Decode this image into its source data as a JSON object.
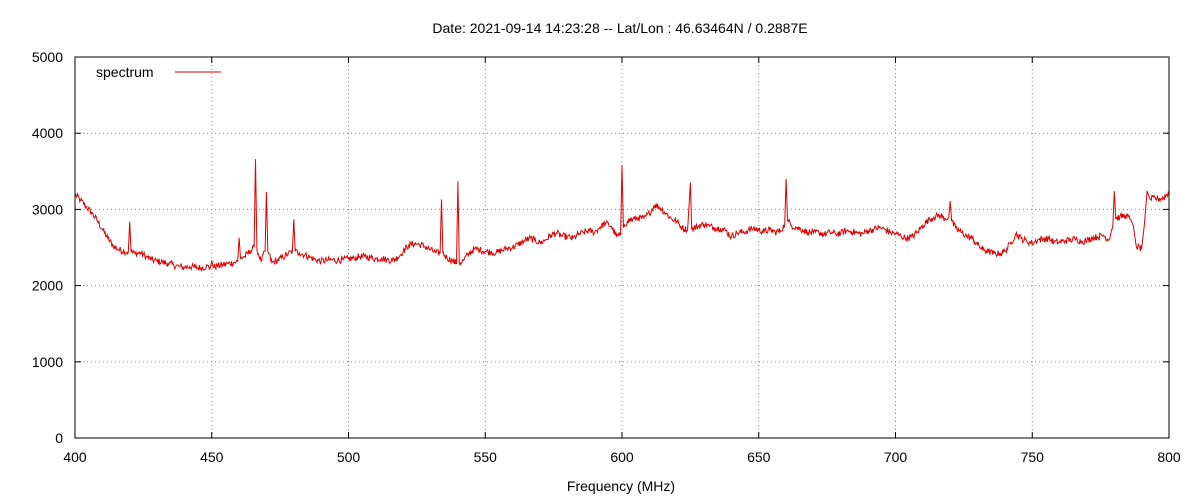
{
  "chart_data": {
    "type": "line",
    "title": "Date: 2021-09-14 14:23:28  --  Lat/Lon : 46.63464N / 0.2887E",
    "xlabel": "Frequency (MHz)",
    "ylabel": "",
    "xlim": [
      400,
      800
    ],
    "ylim": [
      0,
      5000
    ],
    "xticks": [
      "400",
      "450",
      "500",
      "550",
      "600",
      "650",
      "700",
      "750",
      "800"
    ],
    "yticks": [
      "0",
      "1000",
      "2000",
      "3000",
      "4000",
      "5000"
    ],
    "grid": true,
    "legend": {
      "position": "top-left",
      "entries": [
        "spectrum"
      ]
    },
    "series_color": "#e00000",
    "series": [
      {
        "name": "spectrum",
        "points": [
          [
            400,
            3200
          ],
          [
            402,
            3120
          ],
          [
            404,
            3040
          ],
          [
            406,
            2960
          ],
          [
            408,
            2860
          ],
          [
            410,
            2740
          ],
          [
            412,
            2620
          ],
          [
            414,
            2520
          ],
          [
            416,
            2470
          ],
          [
            418,
            2450
          ],
          [
            419.5,
            2440
          ],
          [
            420,
            2840
          ],
          [
            420.5,
            2440
          ],
          [
            422,
            2420
          ],
          [
            424,
            2430
          ],
          [
            426,
            2380
          ],
          [
            428,
            2340
          ],
          [
            430,
            2320
          ],
          [
            432,
            2310
          ],
          [
            434,
            2290
          ],
          [
            436,
            2270
          ],
          [
            438,
            2250
          ],
          [
            440,
            2240
          ],
          [
            442,
            2250
          ],
          [
            444,
            2240
          ],
          [
            446,
            2230
          ],
          [
            448,
            2250
          ],
          [
            449.5,
            2240
          ],
          [
            450,
            2330
          ],
          [
            450.5,
            2240
          ],
          [
            452,
            2260
          ],
          [
            454,
            2270
          ],
          [
            456,
            2290
          ],
          [
            458,
            2300
          ],
          [
            459.5,
            2320
          ],
          [
            460,
            2630
          ],
          [
            460.5,
            2360
          ],
          [
            462,
            2380
          ],
          [
            464,
            2450
          ],
          [
            465.5,
            2500
          ],
          [
            466,
            3660
          ],
          [
            466.5,
            2480
          ],
          [
            468,
            2320
          ],
          [
            469.5,
            2450
          ],
          [
            470,
            3230
          ],
          [
            470.5,
            2450
          ],
          [
            472,
            2300
          ],
          [
            474,
            2330
          ],
          [
            476,
            2370
          ],
          [
            478,
            2420
          ],
          [
            479.5,
            2450
          ],
          [
            480,
            2870
          ],
          [
            480.5,
            2450
          ],
          [
            482,
            2430
          ],
          [
            484,
            2400
          ],
          [
            486,
            2370
          ],
          [
            488,
            2340
          ],
          [
            490,
            2320
          ],
          [
            492,
            2330
          ],
          [
            494,
            2340
          ],
          [
            496,
            2330
          ],
          [
            498,
            2340
          ],
          [
            500,
            2350
          ],
          [
            502,
            2360
          ],
          [
            504,
            2380
          ],
          [
            506,
            2380
          ],
          [
            508,
            2370
          ],
          [
            510,
            2350
          ],
          [
            512,
            2360
          ],
          [
            514,
            2340
          ],
          [
            516,
            2330
          ],
          [
            518,
            2370
          ],
          [
            520,
            2450
          ],
          [
            522,
            2530
          ],
          [
            524,
            2550
          ],
          [
            526,
            2540
          ],
          [
            528,
            2510
          ],
          [
            530,
            2470
          ],
          [
            532,
            2430
          ],
          [
            533.5,
            2430
          ],
          [
            534,
            3130
          ],
          [
            534.5,
            2430
          ],
          [
            536,
            2360
          ],
          [
            538,
            2330
          ],
          [
            539.5,
            2290
          ],
          [
            540,
            3370
          ],
          [
            540.5,
            2290
          ],
          [
            542,
            2330
          ],
          [
            544,
            2420
          ],
          [
            546,
            2480
          ],
          [
            548,
            2470
          ],
          [
            550,
            2450
          ],
          [
            552,
            2440
          ],
          [
            554,
            2430
          ],
          [
            556,
            2460
          ],
          [
            558,
            2490
          ],
          [
            560,
            2500
          ],
          [
            562,
            2540
          ],
          [
            564,
            2580
          ],
          [
            566,
            2620
          ],
          [
            568,
            2600
          ],
          [
            570,
            2560
          ],
          [
            572,
            2600
          ],
          [
            574,
            2660
          ],
          [
            576,
            2690
          ],
          [
            578,
            2650
          ],
          [
            580,
            2640
          ],
          [
            582,
            2620
          ],
          [
            584,
            2670
          ],
          [
            586,
            2700
          ],
          [
            588,
            2720
          ],
          [
            590,
            2700
          ],
          [
            592,
            2770
          ],
          [
            594,
            2820
          ],
          [
            596,
            2780
          ],
          [
            598,
            2650
          ],
          [
            599.5,
            2660
          ],
          [
            600,
            3580
          ],
          [
            600.5,
            2760
          ],
          [
            602,
            2850
          ],
          [
            604,
            2870
          ],
          [
            606,
            2890
          ],
          [
            608,
            2880
          ],
          [
            610,
            2950
          ],
          [
            612,
            3060
          ],
          [
            614,
            3020
          ],
          [
            616,
            2950
          ],
          [
            618,
            2880
          ],
          [
            620,
            2840
          ],
          [
            622,
            2760
          ],
          [
            624,
            2730
          ],
          [
            625,
            3350
          ],
          [
            625.5,
            2740
          ],
          [
            628,
            2780
          ],
          [
            630,
            2810
          ],
          [
            632,
            2780
          ],
          [
            634,
            2760
          ],
          [
            636,
            2750
          ],
          [
            638,
            2720
          ],
          [
            640,
            2640
          ],
          [
            642,
            2690
          ],
          [
            644,
            2700
          ],
          [
            646,
            2720
          ],
          [
            648,
            2750
          ],
          [
            650,
            2730
          ],
          [
            652,
            2710
          ],
          [
            654,
            2730
          ],
          [
            656,
            2700
          ],
          [
            658,
            2720
          ],
          [
            659.5,
            2800
          ],
          [
            660,
            3400
          ],
          [
            660.5,
            2850
          ],
          [
            662,
            2790
          ],
          [
            664,
            2760
          ],
          [
            666,
            2730
          ],
          [
            668,
            2700
          ],
          [
            670,
            2690
          ],
          [
            672,
            2700
          ],
          [
            674,
            2670
          ],
          [
            676,
            2700
          ],
          [
            678,
            2680
          ],
          [
            680,
            2690
          ],
          [
            682,
            2720
          ],
          [
            684,
            2710
          ],
          [
            686,
            2690
          ],
          [
            688,
            2680
          ],
          [
            690,
            2720
          ],
          [
            692,
            2740
          ],
          [
            694,
            2760
          ],
          [
            696,
            2740
          ],
          [
            698,
            2700
          ],
          [
            700,
            2680
          ],
          [
            702,
            2650
          ],
          [
            704,
            2620
          ],
          [
            706,
            2640
          ],
          [
            708,
            2700
          ],
          [
            710,
            2790
          ],
          [
            712,
            2860
          ],
          [
            714,
            2900
          ],
          [
            716,
            2920
          ],
          [
            718,
            2880
          ],
          [
            719.5,
            2900
          ],
          [
            720,
            3110
          ],
          [
            720.5,
            2850
          ],
          [
            722,
            2750
          ],
          [
            724,
            2700
          ],
          [
            726,
            2650
          ],
          [
            728,
            2620
          ],
          [
            730,
            2540
          ],
          [
            732,
            2470
          ],
          [
            734,
            2450
          ],
          [
            736,
            2420
          ],
          [
            738,
            2420
          ],
          [
            740,
            2450
          ],
          [
            742,
            2550
          ],
          [
            744,
            2680
          ],
          [
            746,
            2620
          ],
          [
            748,
            2580
          ],
          [
            750,
            2560
          ],
          [
            752,
            2600
          ],
          [
            754,
            2610
          ],
          [
            756,
            2620
          ],
          [
            758,
            2570
          ],
          [
            760,
            2570
          ],
          [
            762,
            2590
          ],
          [
            764,
            2600
          ],
          [
            766,
            2610
          ],
          [
            768,
            2580
          ],
          [
            770,
            2590
          ],
          [
            772,
            2630
          ],
          [
            774,
            2640
          ],
          [
            776,
            2660
          ],
          [
            778,
            2600
          ],
          [
            779.5,
            2800
          ],
          [
            780,
            3240
          ],
          [
            780.5,
            2880
          ],
          [
            782,
            2900
          ],
          [
            784,
            2920
          ],
          [
            786,
            2870
          ],
          [
            787,
            2780
          ],
          [
            788,
            2520
          ],
          [
            790,
            2480
          ],
          [
            791,
            2800
          ],
          [
            792,
            3240
          ],
          [
            793,
            3140
          ],
          [
            796,
            3140
          ],
          [
            798,
            3150
          ],
          [
            800,
            3230
          ]
        ]
      }
    ]
  }
}
